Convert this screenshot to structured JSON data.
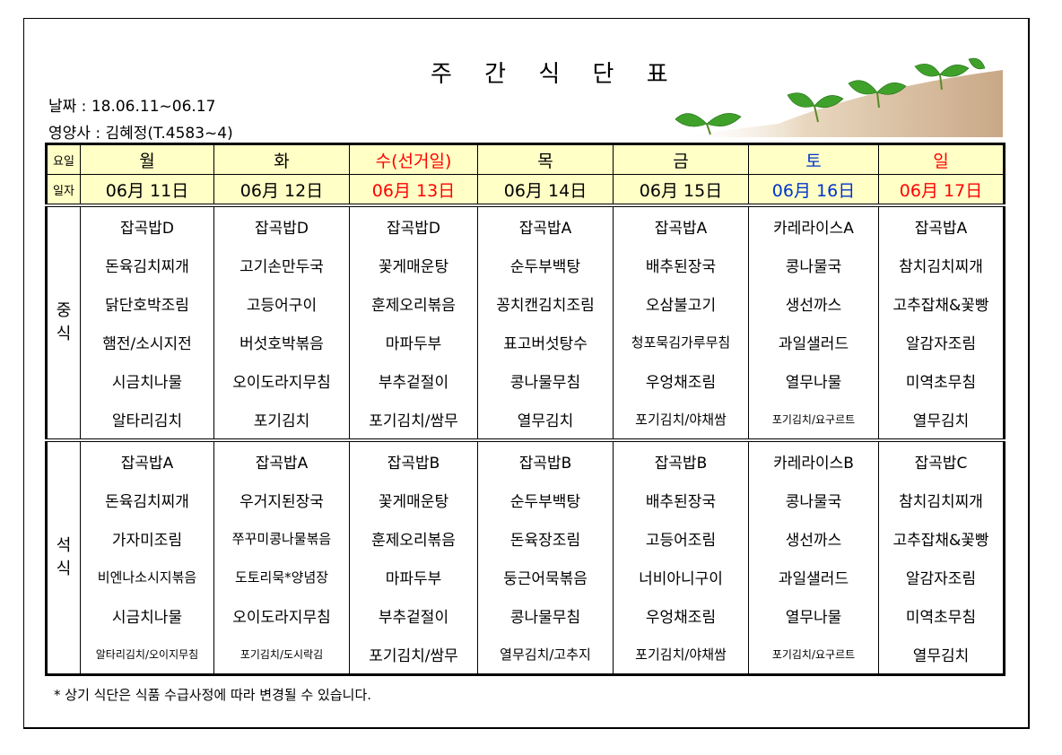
{
  "title": "주 간 식 단 표",
  "date_line": "날짜 : 18.06.11~06.17",
  "dietitian_line": "영양사 : 김혜정(T.4583~4)",
  "header": {
    "day_label": "요일",
    "date_label": "일자",
    "days": [
      {
        "name": "월",
        "date": "06月 11日",
        "color": "#000000"
      },
      {
        "name": "화",
        "date": "06月 12日",
        "color": "#000000"
      },
      {
        "name": "수(선거일)",
        "date": "06月 13日",
        "color": "#ff0000"
      },
      {
        "name": "목",
        "date": "06月 14日",
        "color": "#000000"
      },
      {
        "name": "금",
        "date": "06月 15日",
        "color": "#000000"
      },
      {
        "name": "토",
        "date": "06月 16日",
        "color": "#0033cc"
      },
      {
        "name": "일",
        "date": "06月 17日",
        "color": "#ff0000"
      }
    ]
  },
  "meals": [
    {
      "label": "중\n식",
      "rows": [
        [
          "잡곡밥D",
          "잡곡밥D",
          "잡곡밥D",
          "잡곡밥A",
          "잡곡밥A",
          "카레라이스A",
          "잡곡밥A"
        ],
        [
          "돈육김치찌개",
          "고기손만두국",
          "꽃게매운탕",
          "순두부백탕",
          "배추된장국",
          "콩나물국",
          "참치김치찌개"
        ],
        [
          "닭단호박조림",
          "고등어구이",
          "훈제오리볶음",
          "꽁치캔김치조림",
          "오삼불고기",
          "생선까스",
          "고추잡채&꽃빵"
        ],
        [
          "햄전/소시지전",
          "버섯호박볶음",
          "마파두부",
          "표고버섯탕수",
          "청포묵김가루무침",
          "과일샐러드",
          "알감자조림"
        ],
        [
          "시금치나물",
          "오이도라지무침",
          "부추겉절이",
          "콩나물무침",
          "우엉채조림",
          "열무나물",
          "미역초무침"
        ],
        [
          "알타리김치",
          "포기김치",
          "포기김치/쌈무",
          "열무김치",
          "포기김치/야채쌈",
          "포기김치/요구르트",
          "열무김치"
        ]
      ]
    },
    {
      "label": "석\n식",
      "rows": [
        [
          "잡곡밥A",
          "잡곡밥A",
          "잡곡밥B",
          "잡곡밥B",
          "잡곡밥B",
          "카레라이스B",
          "잡곡밥C"
        ],
        [
          "돈육김치찌개",
          "우거지된장국",
          "꽃게매운탕",
          "순두부백탕",
          "배추된장국",
          "콩나물국",
          "참치김치찌개"
        ],
        [
          "가자미조림",
          "쭈꾸미콩나물볶음",
          "훈제오리볶음",
          "돈육장조림",
          "고등어조림",
          "생선까스",
          "고추잡채&꽃빵"
        ],
        [
          "비엔나소시지볶음",
          "도토리묵*양념장",
          "마파두부",
          "둥근어묵볶음",
          "너비아니구이",
          "과일샐러드",
          "알감자조림"
        ],
        [
          "시금치나물",
          "오이도라지무침",
          "부추겉절이",
          "콩나물무침",
          "우엉채조림",
          "열무나물",
          "미역초무침"
        ],
        [
          "알타리김치/오이지무침",
          "포기김치/도시락김",
          "포기김치/쌈무",
          "열무김치/고추지",
          "포기김치/야채쌈",
          "포기김치/요구르트",
          "열무김치"
        ]
      ]
    }
  ],
  "note": "* 상기 식단은 식품 수급사정에 따라 변경될 수 있습니다."
}
